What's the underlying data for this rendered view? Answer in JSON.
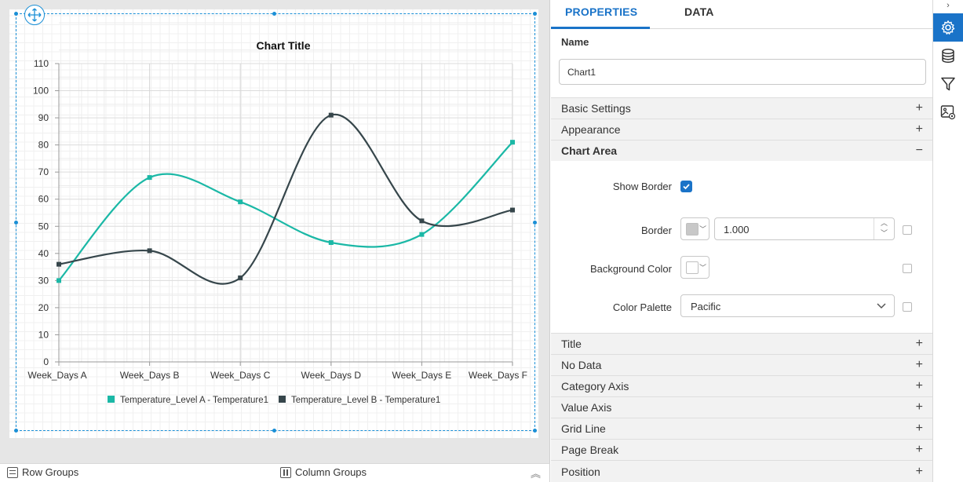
{
  "chart": {
    "move_icon": "move-arrows-icon"
  },
  "chart_data": {
    "type": "line",
    "title": "Chart Title",
    "categories": [
      "Week_Days A",
      "Week_Days B",
      "Week_Days C",
      "Week_Days D",
      "Week_Days E",
      "Week_Days F"
    ],
    "series": [
      {
        "name": "Temperature_Level A - Temperature1",
        "color": "#1bb8a6",
        "values": [
          30,
          68,
          59,
          44,
          47,
          81
        ]
      },
      {
        "name": "Temperature_Level B - Temperature1",
        "color": "#36464b",
        "values": [
          36,
          41,
          31,
          91,
          52,
          56
        ]
      }
    ],
    "ylim": [
      0,
      110
    ],
    "yticks": [
      "0",
      "10",
      "20",
      "30",
      "40",
      "50",
      "60",
      "70",
      "80",
      "90",
      "100",
      "110"
    ],
    "grid": true,
    "legend": "bottom",
    "smooth": true
  },
  "bottom_bar": {
    "row_groups": "Row Groups",
    "column_groups": "Column Groups",
    "collapse_icon": "double-chevron-up-icon"
  },
  "panel": {
    "tabs": [
      "PROPERTIES",
      "DATA"
    ],
    "name_label": "Name",
    "name_value": "Chart1",
    "sections_top": [
      {
        "label": "Basic Settings",
        "sign": "+"
      },
      {
        "label": "Appearance",
        "sign": "+"
      },
      {
        "label": "Chart Area",
        "sign": "−"
      }
    ],
    "chart_area": {
      "show_border_label": "Show Border",
      "show_border_checked": true,
      "border_label": "Border",
      "border_color": "#c8c8c8",
      "border_width": "1.000",
      "background_label": "Background Color",
      "background_color": "#ffffff",
      "palette_label": "Color Palette",
      "palette_value": "Pacific"
    },
    "sections_bottom": [
      {
        "label": "Title",
        "sign": "+"
      },
      {
        "label": "No Data",
        "sign": "+"
      },
      {
        "label": "Category Axis",
        "sign": "+"
      },
      {
        "label": "Value Axis",
        "sign": "+"
      },
      {
        "label": "Grid Line",
        "sign": "+"
      },
      {
        "label": "Page Break",
        "sign": "+"
      },
      {
        "label": "Position",
        "sign": "+"
      }
    ]
  },
  "toolbar": {
    "expand_icon": "chevron-right-icon",
    "buttons": [
      "gear-icon",
      "database-icon",
      "filter-icon",
      "image-settings-icon"
    ],
    "active": "gear-icon"
  }
}
